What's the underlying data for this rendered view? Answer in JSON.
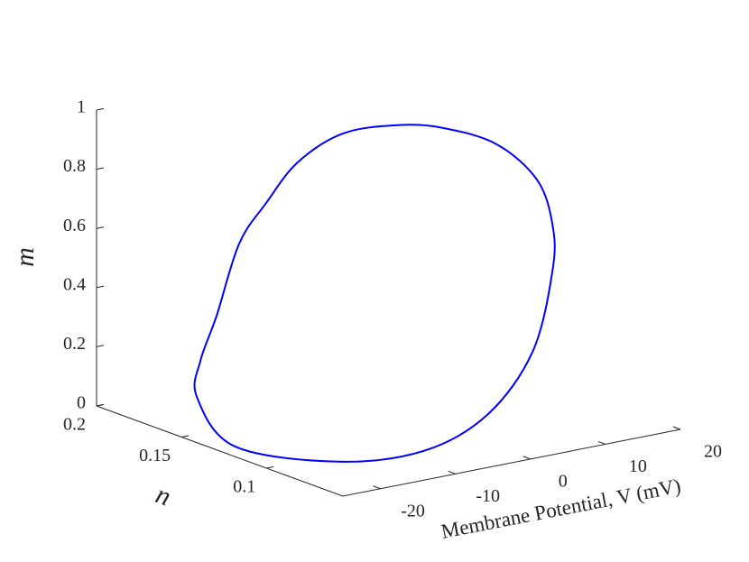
{
  "chart_data": {
    "type": "line3d",
    "xlabel": "Membrane Potential, V (mV)",
    "ylabel": "n",
    "zlabel": "m",
    "x": [
      -24.09,
      -24.69,
      -17.64,
      -7.33,
      1.09,
      8.24,
      13.15,
      15.41,
      15.63,
      12.47,
      7.52,
      2.63,
      -3.46,
      -8.35,
      -11.88,
      -15.04,
      -18.5,
      -22.02,
      -24.09
    ],
    "y": [
      0.145,
      0.12,
      0.09,
      0.085,
      0.085,
      0.09,
      0.1,
      0.11,
      0.12,
      0.13,
      0.14,
      0.145,
      0.15,
      0.155,
      0.158,
      0.16,
      0.158,
      0.152,
      0.145
    ],
    "z": [
      0.142,
      0.03,
      0.006,
      0.002,
      0.082,
      0.249,
      0.478,
      0.598,
      0.728,
      0.844,
      0.903,
      0.926,
      0.918,
      0.835,
      0.709,
      0.583,
      0.361,
      0.239,
      0.142
    ],
    "color": "#0000ff",
    "xlim": [
      -25,
      20
    ],
    "ylim": [
      0.055,
      0.2
    ],
    "zlim": [
      0,
      1
    ],
    "xticks": [
      -20,
      -10,
      0,
      10,
      20
    ],
    "yticks": [
      0.1,
      0.15,
      0.2
    ],
    "zticks": [
      0,
      0.2,
      0.4,
      0.6,
      0.8,
      1
    ]
  }
}
